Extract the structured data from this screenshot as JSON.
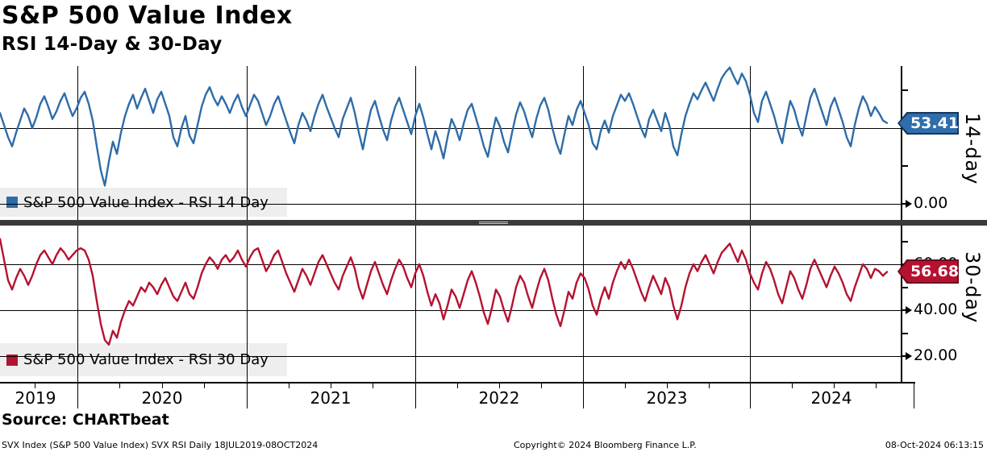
{
  "header": {
    "title": "S&P 500 Value Index",
    "subtitle": "RSI 14-Day & 30-Day"
  },
  "source_line": "Source: CHARTbeat",
  "footer": {
    "left": "SVX Index (S&P 500 Value Index) SVX RSI  Daily 18JUL2019-08OCT2024",
    "center": "Copyright© 2024 Bloomberg Finance L.P.",
    "right": "08-Oct-2024 06:13:15"
  },
  "colors": {
    "rsi14_line": "#2e6ca8",
    "rsi14_badge_fill": "#2f6dab",
    "rsi14_badge_border": "#16365c",
    "rsi30_line": "#b5122f",
    "rsi30_badge_fill": "#b5122f",
    "rsi30_badge_border": "#6e0a1e",
    "grid": "#000000",
    "separator": "#3a3a3a",
    "legend_bg": "#ededed"
  },
  "chart_data": {
    "type": "line",
    "title": "S&P 500 Value Index",
    "subtitle": "RSI 14-Day & 30-Day",
    "x_range_label": "18JUL2019-08OCT2024",
    "x_tick_years": [
      "2019",
      "2020",
      "2021",
      "2022",
      "2023",
      "2024"
    ],
    "grid": "on",
    "panels": [
      {
        "name": "RSI 14 Day",
        "axis_title": "14-day",
        "legend": "S&P 500 Value Index - RSI 14 Day",
        "last_value": "53.41",
        "last_value_num": 53.41,
        "line_color": "#2e6ca8",
        "ylim_visible": [
          -11,
          91
        ],
        "gridline_values": [
          0,
          50
        ],
        "labeled_ticks": [
          {
            "v": 0,
            "label": "0.00"
          }
        ],
        "minor_tick_values": [
          25,
          75
        ],
        "values": [
          60,
          52,
          44,
          38,
          47,
          55,
          63,
          58,
          50,
          57,
          66,
          71,
          64,
          56,
          61,
          68,
          73,
          65,
          58,
          63,
          70,
          74,
          66,
          55,
          38,
          22,
          12,
          28,
          41,
          33,
          47,
          58,
          66,
          72,
          63,
          70,
          76,
          68,
          60,
          69,
          74,
          66,
          58,
          44,
          38,
          50,
          58,
          45,
          40,
          52,
          64,
          72,
          77,
          70,
          65,
          71,
          66,
          60,
          67,
          72,
          64,
          58,
          65,
          72,
          68,
          60,
          52,
          58,
          66,
          71,
          63,
          55,
          47,
          40,
          52,
          60,
          55,
          48,
          58,
          66,
          72,
          64,
          57,
          50,
          44,
          56,
          63,
          70,
          60,
          47,
          36,
          50,
          62,
          68,
          58,
          49,
          42,
          55,
          64,
          70,
          62,
          54,
          46,
          58,
          66,
          57,
          46,
          36,
          48,
          40,
          30,
          44,
          56,
          50,
          42,
          53,
          62,
          66,
          57,
          48,
          38,
          31,
          45,
          57,
          51,
          41,
          34,
          47,
          59,
          67,
          61,
          52,
          44,
          56,
          65,
          70,
          62,
          50,
          40,
          33,
          46,
          58,
          52,
          62,
          68,
          60,
          52,
          40,
          36,
          48,
          55,
          47,
          58,
          65,
          72,
          68,
          73,
          66,
          58,
          50,
          44,
          56,
          62,
          55,
          48,
          60,
          52,
          38,
          32,
          46,
          58,
          66,
          73,
          69,
          75,
          80,
          74,
          68,
          76,
          83,
          87,
          90,
          84,
          79,
          86,
          81,
          72,
          60,
          54,
          68,
          74,
          66,
          58,
          48,
          40,
          55,
          68,
          62,
          52,
          45,
          58,
          70,
          76,
          68,
          60,
          52,
          64,
          70,
          62,
          54,
          44,
          38,
          52,
          63,
          71,
          66,
          58,
          64,
          60,
          55,
          53.41
        ]
      },
      {
        "name": "RSI 30 Day",
        "axis_title": "30-day",
        "legend": "S&P 500 Value Index - RSI 30 Day",
        "last_value": "56.68",
        "last_value_num": 56.68,
        "line_color": "#b5122f",
        "ylim_visible": [
          8,
          76
        ],
        "gridline_values": [
          20,
          40,
          60
        ],
        "labeled_ticks": [
          {
            "v": 60,
            "label": "60.00"
          },
          {
            "v": 40,
            "label": "40.00"
          },
          {
            "v": 20,
            "label": "20.00"
          }
        ],
        "minor_tick_values": [
          30,
          50,
          70
        ],
        "values": [
          71,
          62,
          53,
          49,
          54,
          58,
          55,
          51,
          55,
          60,
          64,
          66,
          63,
          60,
          64,
          67,
          65,
          62,
          64,
          66,
          67,
          66,
          62,
          55,
          44,
          34,
          27,
          25,
          31,
          28,
          35,
          40,
          44,
          42,
          46,
          50,
          48,
          52,
          50,
          47,
          51,
          54,
          50,
          46,
          44,
          48,
          52,
          47,
          45,
          50,
          56,
          60,
          63,
          61,
          58,
          62,
          64,
          61,
          63,
          66,
          62,
          59,
          63,
          66,
          67,
          62,
          57,
          60,
          64,
          66,
          61,
          56,
          52,
          48,
          53,
          58,
          55,
          51,
          56,
          61,
          64,
          60,
          56,
          52,
          49,
          55,
          59,
          63,
          58,
          50,
          45,
          51,
          57,
          61,
          56,
          51,
          47,
          53,
          58,
          62,
          59,
          54,
          50,
          56,
          60,
          55,
          48,
          42,
          47,
          43,
          36,
          42,
          49,
          46,
          41,
          47,
          53,
          57,
          52,
          46,
          39,
          34,
          41,
          49,
          46,
          40,
          35,
          42,
          50,
          55,
          52,
          46,
          41,
          48,
          54,
          58,
          53,
          45,
          38,
          33,
          40,
          48,
          45,
          52,
          56,
          54,
          49,
          42,
          38,
          45,
          50,
          45,
          52,
          57,
          61,
          58,
          62,
          58,
          53,
          48,
          44,
          50,
          55,
          51,
          47,
          54,
          50,
          42,
          36,
          42,
          50,
          56,
          60,
          57,
          61,
          64,
          60,
          56,
          61,
          65,
          67,
          69,
          65,
          61,
          66,
          62,
          56,
          52,
          49,
          56,
          61,
          58,
          53,
          47,
          43,
          50,
          57,
          54,
          49,
          45,
          51,
          58,
          62,
          58,
          54,
          50,
          55,
          59,
          56,
          52,
          47,
          44,
          50,
          55,
          60,
          58,
          54,
          58,
          57,
          55,
          56.68
        ]
      }
    ]
  }
}
